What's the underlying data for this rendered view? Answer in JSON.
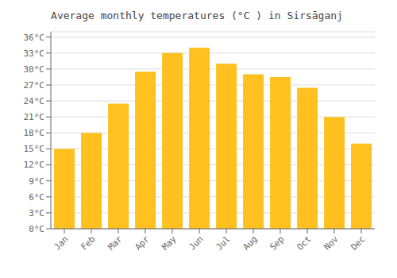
{
  "chart_data": {
    "type": "bar",
    "title": "Average monthly temperatures (°C ) in Sirsāganj",
    "categories": [
      "Jan",
      "Feb",
      "Mar",
      "Apr",
      "May",
      "Jun",
      "Jul",
      "Aug",
      "Sep",
      "Oct",
      "Nov",
      "Dec"
    ],
    "values": [
      15.0,
      18.0,
      23.5,
      29.5,
      33.0,
      34.0,
      31.0,
      29.0,
      28.5,
      26.5,
      21.0,
      16.0
    ],
    "color": "#FFC020",
    "ylim": [
      0,
      37
    ],
    "yticks": [
      {
        "value": 0,
        "label": "0°C"
      },
      {
        "value": 3,
        "label": "3°C"
      },
      {
        "value": 6,
        "label": "6°C"
      },
      {
        "value": 9,
        "label": "9°C"
      },
      {
        "value": 12,
        "label": "12°C"
      },
      {
        "value": 15,
        "label": "15°C"
      },
      {
        "value": 18,
        "label": "18°C"
      },
      {
        "value": 21,
        "label": "21°C"
      },
      {
        "value": 24,
        "label": "24°C"
      },
      {
        "value": 27,
        "label": "27°C"
      },
      {
        "value": 30,
        "label": "30°C"
      },
      {
        "value": 33,
        "label": "33°C"
      },
      {
        "value": 36,
        "label": "36°C"
      }
    ],
    "grid": true
  }
}
